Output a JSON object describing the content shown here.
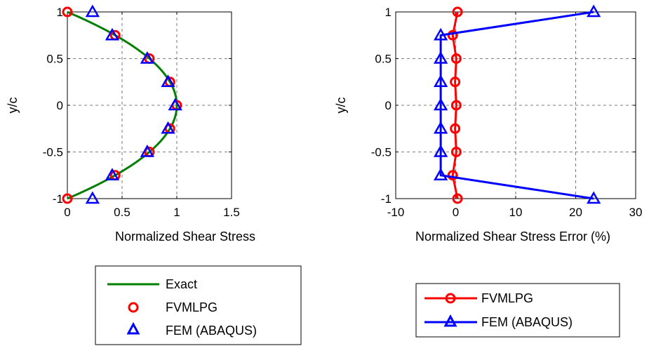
{
  "chart_data": [
    {
      "type": "line",
      "xlabel": "Normalized Shear Stress",
      "ylabel": "y/c",
      "xlim": [
        0,
        1.5
      ],
      "ylim": [
        -1,
        1
      ],
      "xticks": [
        0,
        0.5,
        1,
        1.5
      ],
      "xtick_labels": [
        "0",
        "0.5",
        "1",
        "1.5"
      ],
      "yticks": [
        -1,
        -0.5,
        0,
        0.5,
        1
      ],
      "ytick_labels": [
        "-1",
        "-0.5",
        "0",
        "0.5",
        "1"
      ],
      "grid": true,
      "legend_position": "below",
      "series": [
        {
          "name": "Exact",
          "color": "#007f00",
          "style": "line",
          "x": [
            0,
            0.0396,
            0.0775,
            0.1136,
            0.1479,
            0.1804,
            0.2111,
            0.24,
            0.2671,
            0.2924,
            0.3159,
            0.3376,
            0.3575,
            0.3756,
            0.4,
            0.4279,
            0.4636,
            0.4975,
            0.5296,
            0.5599,
            0.5884,
            0.6151,
            0.64,
            0.6631,
            0.6844,
            0.7039,
            0.7216,
            0.7375,
            0.7516,
            0.7639,
            0.7744,
            0.7831,
            0.79,
            0.8,
            0.84,
            0.875,
            0.9,
            0.94,
            0.96,
            0.975,
            0.99,
            1.0
          ],
          "y": [
            1,
            0.98,
            0.96,
            0.94,
            0.92,
            0.9,
            0.88,
            0.86,
            0.84,
            0.82,
            0.8,
            0.78,
            0.76,
            0.74,
            0.7746,
            0.7566,
            0.7322,
            0.7089,
            0.6858,
            0.6634,
            0.6416,
            0.6203,
            0.6,
            0.5805,
            0.5617,
            0.5442,
            0.5274,
            0.5123,
            0.4983,
            0.4859,
            0.4751,
            0.466,
            0.4583,
            0.4472,
            0.4,
            0.3536,
            0.3162,
            0.2449,
            0.2,
            0.1581,
            0.1,
            0
          ],
          "note": ""
        },
        {
          "name": "FVMLPG",
          "color": "#ff0000",
          "style": "marker-circle",
          "x": [
            0,
            0.4375,
            0.75,
            0.9375,
            1.0,
            0.9375,
            0.75,
            0.4375,
            0
          ],
          "y": [
            1,
            0.75,
            0.5,
            0.25,
            0,
            -0.25,
            -0.5,
            -0.75,
            -1
          ]
        },
        {
          "name": "FEM (ABAQUS)",
          "color": "#0000ff",
          "style": "marker-triangle",
          "x": [
            0.23,
            0.41,
            0.73,
            0.92,
            0.985,
            0.92,
            0.73,
            0.41,
            0.23
          ],
          "y": [
            1,
            0.75,
            0.5,
            0.25,
            0,
            -0.25,
            -0.5,
            -0.75,
            -1
          ]
        }
      ]
    },
    {
      "type": "line",
      "xlabel": "Normalized Shear Stress Error (%)",
      "ylabel": "y/c",
      "xlim": [
        -10,
        30
      ],
      "ylim": [
        -1,
        1
      ],
      "xticks": [
        -10,
        0,
        10,
        20,
        30
      ],
      "xtick_labels": [
        "-10",
        "0",
        "10",
        "20",
        "30"
      ],
      "yticks": [
        -1,
        -0.5,
        0,
        0.5,
        1
      ],
      "ytick_labels": [
        "-1",
        "-0.5",
        "0",
        "0.5",
        "1"
      ],
      "grid": true,
      "legend_position": "below",
      "series": [
        {
          "name": "FVMLPG",
          "color": "#ff0000",
          "style": "line-circle",
          "x": [
            0.3,
            -0.5,
            0.1,
            -0.1,
            0.1,
            -0.1,
            0.1,
            -0.5,
            0.3
          ],
          "y": [
            1,
            0.75,
            0.5,
            0.25,
            0,
            -0.25,
            -0.5,
            -0.75,
            -1
          ]
        },
        {
          "name": "FEM (ABAQUS)",
          "color": "#0000ff",
          "style": "line-triangle",
          "x": [
            23,
            -2.5,
            -2.5,
            -2.5,
            -2.5,
            -2.5,
            -2.5,
            -2.5,
            23
          ],
          "y": [
            1,
            0.75,
            0.5,
            0.25,
            0,
            -0.25,
            -0.5,
            -0.75,
            -1
          ]
        }
      ]
    }
  ]
}
